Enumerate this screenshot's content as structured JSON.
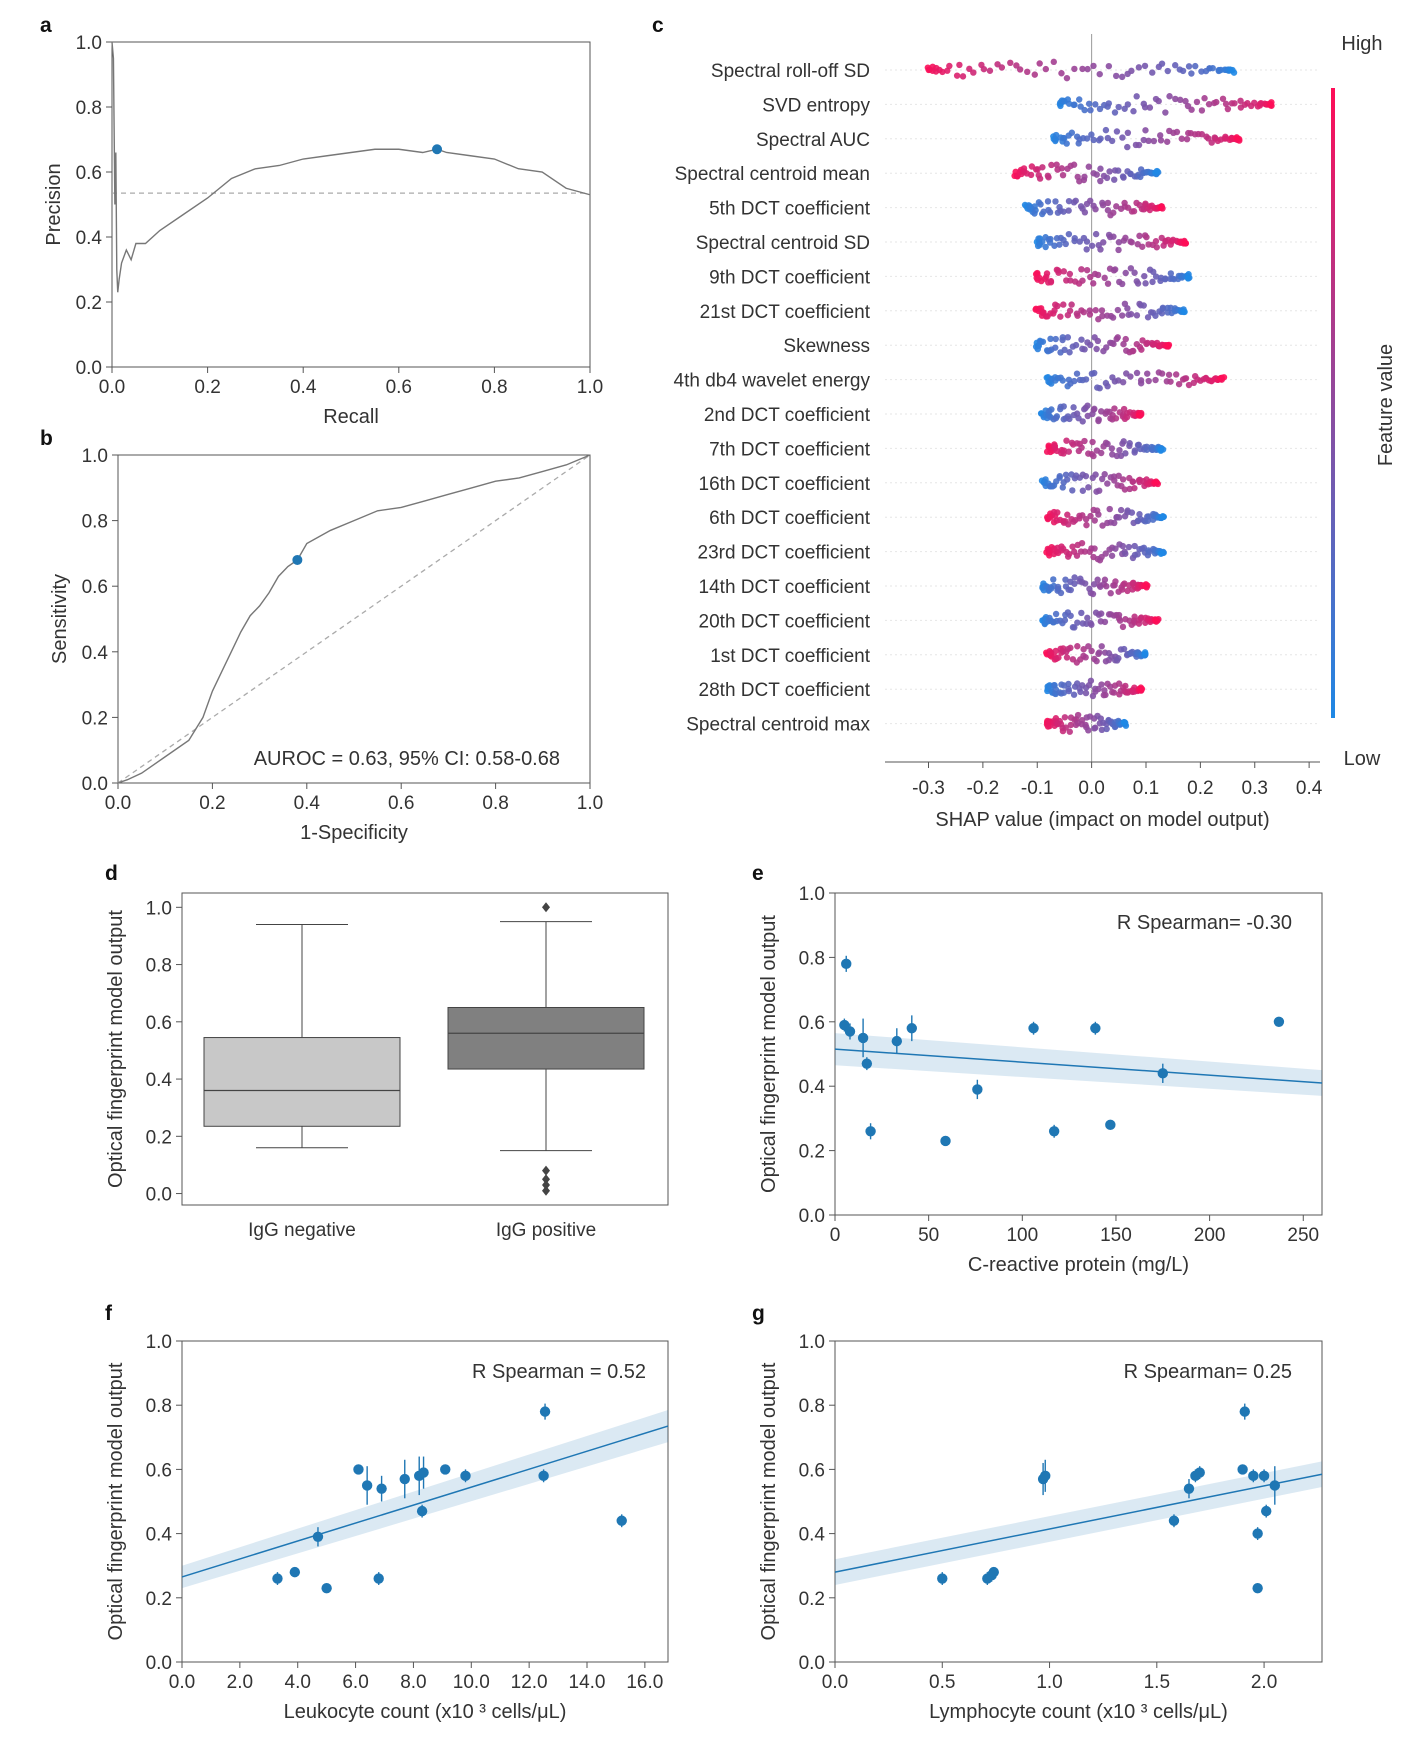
{
  "chart_data": [
    {
      "panel": "a",
      "type": "line",
      "title": "",
      "xlabel": "Recall",
      "ylabel": "Precision",
      "xlim": [
        0,
        1
      ],
      "ylim": [
        0,
        1
      ],
      "xticks": [
        "0.0",
        "0.2",
        "0.4",
        "0.6",
        "0.8",
        "1.0"
      ],
      "yticks": [
        "0.0",
        "0.2",
        "0.4",
        "0.6",
        "0.8",
        "1.0"
      ],
      "series": [
        {
          "name": "PR curve",
          "x": [
            0,
            0.003,
            0.006,
            0.008,
            0.01,
            0.012,
            0.015,
            0.02,
            0.03,
            0.04,
            0.05,
            0.07,
            0.1,
            0.15,
            0.2,
            0.25,
            0.3,
            0.35,
            0.4,
            0.45,
            0.5,
            0.55,
            0.6,
            0.65,
            0.68,
            0.7,
            0.75,
            0.8,
            0.85,
            0.9,
            0.95,
            1.0
          ],
          "y": [
            1.0,
            0.95,
            0.5,
            0.66,
            0.3,
            0.23,
            0.27,
            0.32,
            0.36,
            0.33,
            0.38,
            0.38,
            0.42,
            0.47,
            0.52,
            0.58,
            0.61,
            0.62,
            0.64,
            0.65,
            0.66,
            0.67,
            0.67,
            0.66,
            0.67,
            0.66,
            0.65,
            0.64,
            0.61,
            0.6,
            0.55,
            0.53
          ]
        },
        {
          "name": "baseline",
          "x": [
            0,
            1
          ],
          "y": [
            0.535,
            0.535
          ]
        }
      ],
      "marker": {
        "x": 0.68,
        "y": 0.67
      }
    },
    {
      "panel": "b",
      "type": "line",
      "xlabel": "1-Specificity",
      "ylabel": "Sensitivity",
      "xlim": [
        0,
        1
      ],
      "ylim": [
        0,
        1
      ],
      "xticks": [
        "0.0",
        "0.2",
        "0.4",
        "0.6",
        "0.8",
        "1.0"
      ],
      "yticks": [
        "0.0",
        "0.2",
        "0.4",
        "0.6",
        "0.8",
        "1.0"
      ],
      "annotation": "AUROC = 0.63, 95% CI: 0.58-0.68",
      "series": [
        {
          "name": "ROC",
          "x": [
            0,
            0.02,
            0.05,
            0.1,
            0.15,
            0.18,
            0.2,
            0.22,
            0.24,
            0.26,
            0.28,
            0.3,
            0.32,
            0.34,
            0.36,
            0.38,
            0.4,
            0.45,
            0.5,
            0.55,
            0.6,
            0.65,
            0.7,
            0.75,
            0.8,
            0.85,
            0.9,
            0.95,
            1.0
          ],
          "y": [
            0,
            0.01,
            0.03,
            0.08,
            0.13,
            0.2,
            0.28,
            0.34,
            0.4,
            0.46,
            0.51,
            0.54,
            0.58,
            0.63,
            0.66,
            0.68,
            0.73,
            0.77,
            0.8,
            0.83,
            0.84,
            0.86,
            0.88,
            0.9,
            0.92,
            0.93,
            0.95,
            0.97,
            1.0
          ]
        },
        {
          "name": "chance",
          "x": [
            0,
            1
          ],
          "y": [
            0,
            1
          ]
        }
      ],
      "marker": {
        "x": 0.38,
        "y": 0.68
      }
    },
    {
      "panel": "c",
      "type": "scatter",
      "subtype": "shap-beeswarm",
      "xlabel": "SHAP value (impact on model output)",
      "xticks": [
        "-0.3",
        "-0.2",
        "-0.1",
        "0.0",
        "0.1",
        "0.2",
        "0.3",
        "0.4"
      ],
      "xlim": [
        -0.38,
        0.42
      ],
      "colorbar": {
        "label": "Feature value",
        "high": "High",
        "low": "Low",
        "low_color": "#1e88e5",
        "high_color": "#ff0d57"
      },
      "features": [
        {
          "label": "Spectral roll-off SD",
          "min": -0.3,
          "max": 0.26,
          "low_side": "right"
        },
        {
          "label": "SVD entropy",
          "min": -0.06,
          "max": 0.33,
          "low_side": "left"
        },
        {
          "label": "Spectral AUC",
          "min": -0.07,
          "max": 0.27,
          "low_side": "left"
        },
        {
          "label": "Spectral centroid mean",
          "min": -0.14,
          "max": 0.12,
          "low_side": "right"
        },
        {
          "label": "5th DCT coefficient",
          "min": -0.12,
          "max": 0.13,
          "low_side": "left"
        },
        {
          "label": "Spectral centroid SD",
          "min": -0.1,
          "max": 0.17,
          "low_side": "left"
        },
        {
          "label": "9th DCT coefficient",
          "min": -0.1,
          "max": 0.18,
          "low_side": "right"
        },
        {
          "label": "21st DCT coefficient",
          "min": -0.1,
          "max": 0.17,
          "low_side": "right"
        },
        {
          "label": "Skewness",
          "min": -0.1,
          "max": 0.14,
          "low_side": "left"
        },
        {
          "label": "4th db4 wavelet energy",
          "min": -0.08,
          "max": 0.24,
          "low_side": "left"
        },
        {
          "label": "2nd DCT coefficient",
          "min": -0.09,
          "max": 0.09,
          "low_side": "left"
        },
        {
          "label": "7th DCT coefficient",
          "min": -0.08,
          "max": 0.13,
          "low_side": "right"
        },
        {
          "label": "16th DCT coefficient",
          "min": -0.09,
          "max": 0.12,
          "low_side": "left"
        },
        {
          "label": "6th DCT coefficient",
          "min": -0.08,
          "max": 0.13,
          "low_side": "right"
        },
        {
          "label": "23rd DCT coefficient",
          "min": -0.08,
          "max": 0.13,
          "low_side": "right"
        },
        {
          "label": "14th DCT coefficient",
          "min": -0.09,
          "max": 0.1,
          "low_side": "left"
        },
        {
          "label": "20th DCT coefficient",
          "min": -0.09,
          "max": 0.12,
          "low_side": "left"
        },
        {
          "label": "1st DCT coefficient",
          "min": -0.08,
          "max": 0.1,
          "low_side": "right"
        },
        {
          "label": "28th DCT coefficient",
          "min": -0.08,
          "max": 0.09,
          "low_side": "left"
        },
        {
          "label": "Spectral centroid max",
          "min": -0.08,
          "max": 0.06,
          "low_side": "right"
        }
      ]
    },
    {
      "panel": "d",
      "type": "box",
      "ylabel": "Optical fingerprint model output",
      "ylim": [
        -0.04,
        1.05
      ],
      "yticks": [
        "0.0",
        "0.2",
        "0.4",
        "0.6",
        "0.8",
        "1.0"
      ],
      "categories": [
        "IgG negative",
        "IgG positive"
      ],
      "boxes": [
        {
          "name": "IgG negative",
          "whisker_low": 0.16,
          "q1": 0.235,
          "median": 0.36,
          "q3": 0.545,
          "whisker_high": 0.94,
          "outliers": [],
          "color": "#c8c8c8"
        },
        {
          "name": "IgG positive",
          "whisker_low": 0.15,
          "q1": 0.435,
          "median": 0.56,
          "q3": 0.65,
          "whisker_high": 0.95,
          "outliers": [
            1.0,
            0.08,
            0.05,
            0.03,
            0.01
          ],
          "color": "#808080"
        }
      ]
    },
    {
      "panel": "e",
      "type": "scatter",
      "xlabel": "C-reactive protein (mg/L)",
      "ylabel": "Optical fingerprint model output",
      "xlim": [
        0,
        260
      ],
      "ylim": [
        0,
        1
      ],
      "xticks": [
        "0",
        "50",
        "100",
        "150",
        "200",
        "250"
      ],
      "yticks": [
        "0.0",
        "0.2",
        "0.4",
        "0.6",
        "0.8",
        "1.0"
      ],
      "annotation": "R Spearman= -0.30",
      "points": [
        [
          5,
          0.59,
          0.02
        ],
        [
          6,
          0.78,
          0.025
        ],
        [
          8,
          0.57,
          0.025
        ],
        [
          15,
          0.55,
          0.06
        ],
        [
          17,
          0.47,
          0.02
        ],
        [
          19,
          0.26,
          0.025
        ],
        [
          33,
          0.54,
          0.04
        ],
        [
          41,
          0.58,
          0.04
        ],
        [
          59,
          0.23,
          0.015
        ],
        [
          76,
          0.39,
          0.03
        ],
        [
          106,
          0.58,
          0.02
        ],
        [
          117,
          0.26,
          0.02
        ],
        [
          139,
          0.58,
          0.02
        ],
        [
          147,
          0.28,
          0.01
        ],
        [
          175,
          0.44,
          0.03
        ],
        [
          237,
          0.6,
          0.01
        ]
      ],
      "regression": {
        "x": [
          0,
          260
        ],
        "y": [
          0.515,
          0.41
        ],
        "band": [
          0.05,
          0.04
        ]
      }
    },
    {
      "panel": "f",
      "type": "scatter",
      "xlabel": "Leukocyte count (x10 ³ cells/μL)",
      "ylabel": "Optical fingerprint model output",
      "xlim": [
        0,
        16.8
      ],
      "ylim": [
        0,
        1
      ],
      "xticks": [
        "0.0",
        "2.0",
        "4.0",
        "6.0",
        "8.0",
        "10.0",
        "12.0",
        "14.0",
        "16.0"
      ],
      "yticks": [
        "0.0",
        "0.2",
        "0.4",
        "0.6",
        "0.8",
        "1.0"
      ],
      "annotation": "R Spearman = 0.52",
      "points": [
        [
          3.3,
          0.26,
          0.02
        ],
        [
          3.9,
          0.28,
          0.01
        ],
        [
          4.7,
          0.39,
          0.03
        ],
        [
          5.0,
          0.23,
          0.015
        ],
        [
          6.1,
          0.6,
          0.01
        ],
        [
          6.4,
          0.55,
          0.06
        ],
        [
          6.8,
          0.26,
          0.02
        ],
        [
          6.9,
          0.54,
          0.04
        ],
        [
          7.7,
          0.57,
          0.06
        ],
        [
          8.2,
          0.58,
          0.06
        ],
        [
          8.3,
          0.47,
          0.02
        ],
        [
          8.35,
          0.59,
          0.05
        ],
        [
          9.1,
          0.6,
          0.01
        ],
        [
          9.8,
          0.58,
          0.02
        ],
        [
          12.5,
          0.58,
          0.02
        ],
        [
          12.55,
          0.78,
          0.025
        ],
        [
          15.2,
          0.44,
          0.02
        ]
      ],
      "regression": {
        "x": [
          0,
          16.8
        ],
        "y": [
          0.265,
          0.735
        ],
        "band": [
          0.035,
          0.05
        ]
      }
    },
    {
      "panel": "g",
      "type": "scatter",
      "xlabel": "Lymphocyte count (x10 ³ cells/μL)",
      "ylabel": "Optical fingerprint model output",
      "xlim": [
        0,
        2.27
      ],
      "ylim": [
        0,
        1
      ],
      "xticks": [
        "0.0",
        "0.5",
        "1.0",
        "1.5",
        "2.0"
      ],
      "yticks": [
        "0.0",
        "0.2",
        "0.4",
        "0.6",
        "0.8",
        "1.0"
      ],
      "annotation": "R Spearman= 0.25",
      "points": [
        [
          0.5,
          0.26,
          0.02
        ],
        [
          0.71,
          0.26,
          0.02
        ],
        [
          0.73,
          0.27,
          0.02
        ],
        [
          0.74,
          0.28,
          0.01
        ],
        [
          0.97,
          0.57,
          0.05
        ],
        [
          0.98,
          0.58,
          0.05
        ],
        [
          1.58,
          0.44,
          0.02
        ],
        [
          1.65,
          0.54,
          0.03
        ],
        [
          1.68,
          0.58,
          0.02
        ],
        [
          1.7,
          0.59,
          0.02
        ],
        [
          1.9,
          0.6,
          0.01
        ],
        [
          1.91,
          0.78,
          0.025
        ],
        [
          1.95,
          0.58,
          0.02
        ],
        [
          1.97,
          0.4,
          0.02
        ],
        [
          1.97,
          0.23,
          0.015
        ],
        [
          2.0,
          0.58,
          0.02
        ],
        [
          2.01,
          0.47,
          0.02
        ],
        [
          2.05,
          0.55,
          0.06
        ]
      ],
      "regression": {
        "x": [
          0,
          2.27
        ],
        "y": [
          0.28,
          0.585
        ],
        "band": [
          0.04,
          0.04
        ]
      }
    }
  ]
}
